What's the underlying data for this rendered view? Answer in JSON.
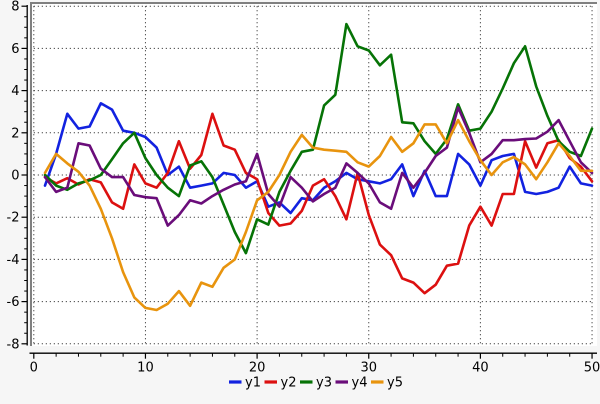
{
  "chart_data": {
    "type": "line",
    "title": "",
    "xlabel": "",
    "ylabel": "",
    "xlim": [
      -0.35,
      50.45
    ],
    "ylim": [
      -8.55,
      8.2
    ],
    "grid": "dotted black lines at every major tick",
    "legend_position": "bottom-center",
    "x_tick_labels": [
      "0",
      "10",
      "20",
      "30",
      "40",
      "50"
    ],
    "x_ticks_major": [
      0,
      10,
      20,
      30,
      40,
      50
    ],
    "x_tick_minor_step": 2,
    "y_tick_labels": [
      "8",
      "6",
      "4",
      "2",
      "0",
      "-2",
      "-4",
      "-6",
      "-8"
    ],
    "y_ticks_major": [
      8,
      6,
      4,
      2,
      0,
      -2,
      -4,
      -6,
      -8
    ],
    "y_tick_minor_step": 0.5,
    "x": [
      1,
      2,
      3,
      4,
      5,
      6,
      7,
      8,
      9,
      10,
      11,
      12,
      13,
      14,
      15,
      16,
      17,
      18,
      19,
      20,
      21,
      22,
      23,
      24,
      25,
      26,
      27,
      28,
      29,
      30,
      31,
      32,
      33,
      34,
      35,
      36,
      37,
      38,
      39,
      40,
      41,
      42,
      43,
      44,
      45,
      46,
      47,
      48,
      49,
      50
    ],
    "series": [
      {
        "name": "y1",
        "color": "#1222e0",
        "values": [
          -0.5,
          1.0,
          2.9,
          2.2,
          2.3,
          3.4,
          3.1,
          2.1,
          2.0,
          1.8,
          1.3,
          0.0,
          0.4,
          -0.6,
          -0.5,
          -0.4,
          0.1,
          0.0,
          -0.6,
          -0.3,
          -1.5,
          -1.3,
          -1.8,
          -1.1,
          -1.2,
          -0.6,
          -0.3,
          0.1,
          -0.2,
          -0.3,
          -0.4,
          -0.2,
          0.5,
          -1.0,
          0.2,
          -1.0,
          -1.0,
          1.0,
          0.5,
          -0.5,
          0.7,
          0.9,
          1.0,
          -0.8,
          -0.9,
          -0.8,
          -0.6,
          0.4,
          -0.4,
          -0.5
        ]
      },
      {
        "name": "y2",
        "color": "#dc1010",
        "values": [
          -0.1,
          -0.4,
          -0.15,
          -0.45,
          -0.2,
          -0.35,
          -1.3,
          -1.6,
          0.5,
          -0.4,
          -0.6,
          0.1,
          1.6,
          0.3,
          0.95,
          2.9,
          1.4,
          1.2,
          0.1,
          -0.2,
          -1.8,
          -2.4,
          -2.3,
          -1.7,
          -0.5,
          -0.2,
          -1.0,
          -2.1,
          0.1,
          -1.9,
          -3.3,
          -3.8,
          -4.9,
          -5.1,
          -5.6,
          -5.2,
          -4.3,
          -4.2,
          -2.4,
          -1.5,
          -2.4,
          -0.9,
          -0.9,
          1.6,
          0.35,
          1.5,
          1.65,
          0.8,
          0.4,
          -0.3
        ]
      },
      {
        "name": "y3",
        "color": "#067306",
        "values": [
          0.0,
          -0.5,
          -0.7,
          -0.4,
          -0.25,
          0.0,
          0.75,
          1.5,
          2.0,
          0.8,
          0.0,
          -0.6,
          -1.0,
          0.45,
          0.65,
          -0.1,
          -1.4,
          -2.7,
          -3.7,
          -2.1,
          -2.35,
          -0.8,
          0.2,
          1.1,
          1.2,
          3.3,
          3.8,
          7.15,
          6.1,
          5.9,
          5.2,
          5.7,
          2.5,
          2.45,
          1.6,
          1.0,
          1.7,
          3.35,
          2.1,
          2.2,
          3.0,
          4.1,
          5.3,
          6.1,
          4.2,
          2.8,
          1.6,
          1.1,
          0.9,
          2.2
        ]
      },
      {
        "name": "y4",
        "color": "#6a0d7a",
        "values": [
          -0.1,
          -0.8,
          -0.6,
          1.5,
          1.4,
          0.3,
          -0.1,
          -0.1,
          -0.95,
          -1.05,
          -1.1,
          -2.4,
          -1.9,
          -1.2,
          -1.35,
          -1.0,
          -0.7,
          -0.45,
          -0.3,
          1.0,
          -0.9,
          -1.5,
          -0.1,
          -0.6,
          -1.25,
          -0.9,
          -0.6,
          0.55,
          0.1,
          -0.4,
          -1.3,
          -1.6,
          0.1,
          -0.6,
          0.1,
          0.9,
          1.3,
          3.2,
          2.0,
          0.6,
          1.0,
          1.65,
          1.65,
          1.7,
          1.73,
          2.05,
          2.6,
          1.6,
          0.6,
          0.1
        ]
      },
      {
        "name": "y5",
        "color": "#e8940e",
        "values": [
          0.1,
          1.0,
          0.55,
          0.15,
          -0.5,
          -1.6,
          -3.0,
          -4.6,
          -5.8,
          -6.3,
          -6.4,
          -6.1,
          -5.5,
          -6.2,
          -5.1,
          -5.3,
          -4.4,
          -4.0,
          -2.7,
          -1.2,
          -0.8,
          0.0,
          1.1,
          1.9,
          1.3,
          1.2,
          1.15,
          1.1,
          0.6,
          0.4,
          0.9,
          1.8,
          1.1,
          1.5,
          2.4,
          2.4,
          1.5,
          2.6,
          1.6,
          0.7,
          0.0,
          0.6,
          0.85,
          0.5,
          -0.2,
          0.6,
          1.5,
          0.9,
          0.2,
          0.2
        ]
      }
    ]
  },
  "colors": {
    "page_background": "#f6f6f6",
    "plot_background": "#ffffff",
    "frame": "#808080",
    "axis": "#000000",
    "grid": "#1a1a1a"
  }
}
